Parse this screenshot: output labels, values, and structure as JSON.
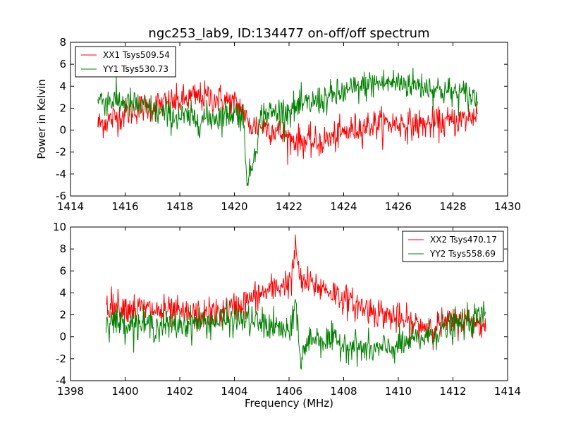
{
  "title": "ngc253_lab9, ID:134477 on-off/off spectrum",
  "chart_data": [
    {
      "type": "line",
      "title": "ngc253_lab9, ID:134477 on-off/off spectrum",
      "xlabel": "",
      "ylabel": "Power in Kelvin",
      "xlim": [
        1414,
        1430
      ],
      "ylim": [
        -6,
        8
      ],
      "xticks": [
        1414,
        1416,
        1418,
        1420,
        1422,
        1424,
        1426,
        1428,
        1430
      ],
      "yticks": [
        -6,
        -4,
        -2,
        0,
        2,
        4,
        6,
        8
      ],
      "legend_position": "top-left",
      "series": [
        {
          "name": "XX1 Tsys509.54",
          "color": "#ff0000",
          "x": [
            1415.0,
            1415.5,
            1416.0,
            1416.5,
            1417.0,
            1417.5,
            1418.0,
            1418.5,
            1419.0,
            1419.5,
            1420.0,
            1420.3,
            1420.5,
            1421.0,
            1421.5,
            1422.0,
            1422.5,
            1423.0,
            1423.5,
            1424.0,
            1424.5,
            1425.0,
            1425.5,
            1426.0,
            1426.5,
            1427.0,
            1427.5,
            1428.0,
            1428.5,
            1428.9
          ],
          "values": [
            0.5,
            1.0,
            1.5,
            2.0,
            2.2,
            2.4,
            2.6,
            3.0,
            3.0,
            2.8,
            2.4,
            2.0,
            0.4,
            0.4,
            0.0,
            -0.8,
            -1.0,
            -1.2,
            -0.8,
            -0.3,
            0.2,
            0.5,
            0.6,
            0.6,
            0.5,
            0.5,
            0.6,
            0.8,
            1.0,
            1.6
          ]
        },
        {
          "name": "YY1 Tsys530.73",
          "color": "#008000",
          "x": [
            1415.0,
            1415.5,
            1416.0,
            1416.5,
            1417.0,
            1417.5,
            1418.0,
            1418.5,
            1419.0,
            1419.5,
            1420.0,
            1420.3,
            1420.5,
            1421.0,
            1421.5,
            1422.0,
            1422.5,
            1423.0,
            1423.5,
            1424.0,
            1424.5,
            1425.0,
            1425.5,
            1426.0,
            1426.5,
            1427.0,
            1427.5,
            1428.0,
            1428.5,
            1428.9
          ],
          "values": [
            2.8,
            2.7,
            2.5,
            2.2,
            1.8,
            1.4,
            1.2,
            1.0,
            1.1,
            1.3,
            1.6,
            1.4,
            -5.0,
            1.4,
            1.6,
            1.8,
            2.2,
            2.6,
            3.0,
            3.4,
            3.8,
            4.2,
            4.3,
            4.3,
            4.2,
            4.0,
            3.7,
            3.4,
            3.2,
            2.9
          ]
        }
      ]
    },
    {
      "type": "line",
      "title": "",
      "xlabel": "Frequency (MHz)",
      "ylabel": "",
      "xlim": [
        1398,
        1414
      ],
      "ylim": [
        -4,
        10
      ],
      "xticks": [
        1398,
        1400,
        1402,
        1404,
        1406,
        1408,
        1410,
        1412,
        1414
      ],
      "yticks": [
        -4,
        -2,
        0,
        2,
        4,
        6,
        8,
        10
      ],
      "legend_position": "top-right",
      "series": [
        {
          "name": "XX2 Tsys470.17",
          "color": "#ff0000",
          "x": [
            1399.3,
            1399.8,
            1400.3,
            1400.8,
            1401.3,
            1401.8,
            1402.3,
            1402.8,
            1403.3,
            1403.8,
            1404.3,
            1404.8,
            1405.3,
            1405.8,
            1406.1,
            1406.25,
            1406.4,
            1406.8,
            1407.3,
            1407.8,
            1408.3,
            1408.8,
            1409.3,
            1409.8,
            1410.3,
            1410.8,
            1411.3,
            1411.8,
            1412.3,
            1412.8,
            1413.2
          ],
          "values": [
            3.0,
            2.8,
            2.6,
            2.5,
            2.3,
            2.2,
            2.0,
            2.0,
            2.2,
            2.4,
            3.0,
            3.7,
            4.2,
            4.8,
            5.2,
            8.4,
            5.0,
            4.8,
            4.4,
            3.8,
            3.0,
            2.6,
            2.2,
            1.8,
            1.3,
            1.0,
            1.0,
            1.2,
            1.5,
            1.4,
            0.8
          ]
        },
        {
          "name": "YY2 Tsys558.69",
          "color": "#008000",
          "x": [
            1399.3,
            1399.8,
            1400.3,
            1400.8,
            1401.3,
            1401.8,
            1402.3,
            1402.8,
            1403.3,
            1403.8,
            1404.3,
            1404.8,
            1405.3,
            1405.8,
            1406.1,
            1406.25,
            1406.4,
            1406.8,
            1407.3,
            1407.8,
            1408.3,
            1408.8,
            1409.3,
            1409.8,
            1410.3,
            1410.8,
            1411.3,
            1411.8,
            1412.3,
            1412.8,
            1413.2
          ],
          "values": [
            1.5,
            1.3,
            1.2,
            1.1,
            1.0,
            1.0,
            1.2,
            1.3,
            1.4,
            1.5,
            1.6,
            1.3,
            1.0,
            0.6,
            0.3,
            3.8,
            -2.2,
            0.0,
            -0.3,
            -0.5,
            -0.8,
            -1.2,
            -1.2,
            -1.0,
            -0.6,
            -0.2,
            0.3,
            0.8,
            1.2,
            1.5,
            2.2
          ]
        }
      ]
    }
  ]
}
